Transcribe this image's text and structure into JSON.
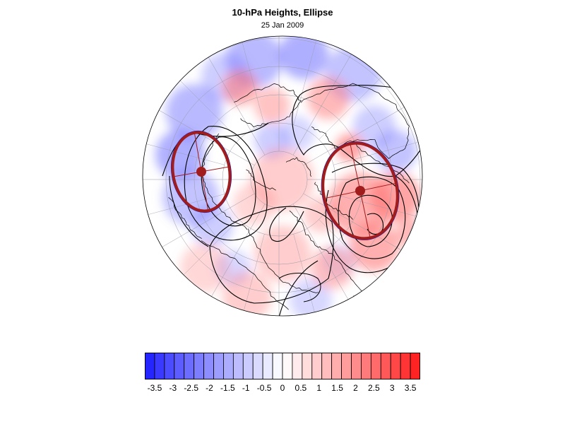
{
  "title": "10-hPa Heights, Ellipse",
  "subtitle": "25 Jan 2009",
  "colorbar": {
    "labels": [
      "-3.5",
      "-3",
      "-2.5",
      "-2",
      "-1.5",
      "-1",
      "-0.5",
      "0",
      "0.5",
      "1",
      "1.5",
      "2",
      "2.5",
      "3",
      "3.5"
    ],
    "min_value": -3.5,
    "max_value": 3.5,
    "negative_color": "#1a1aff",
    "positive_color": "#ff1a1a",
    "neutral_color": "#ffffff"
  },
  "map": {
    "projection": "north-polar-stereographic",
    "anomaly_colors": {
      "negative": "#7a7aff",
      "positive": "#ff7a7a"
    },
    "ellipse_color": "#a11c1c",
    "ellipse_edge_color": "#1a1ab0",
    "contour_color": "#000000",
    "coastline_color": "#000000",
    "grid_color": "#9a9aa8"
  }
}
